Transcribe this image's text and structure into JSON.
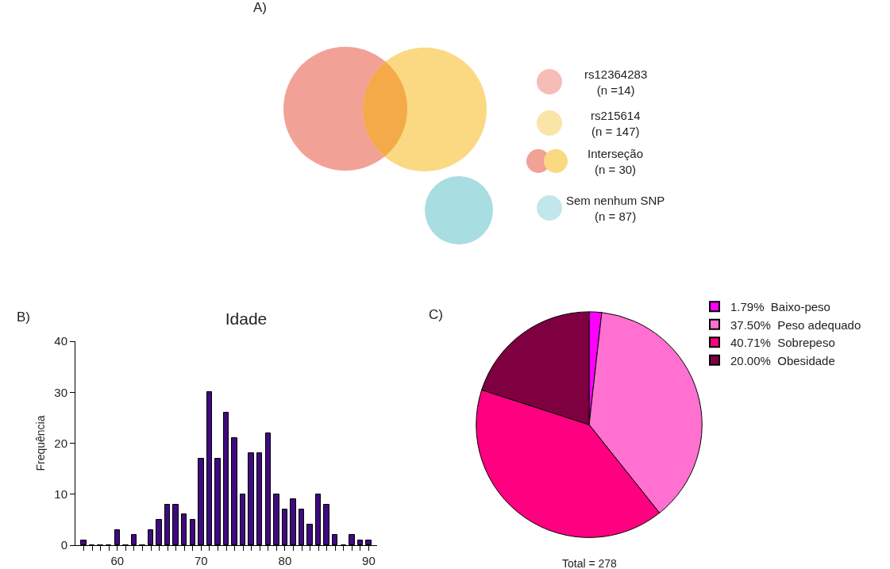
{
  "chart_data": [
    {
      "type": "other",
      "annotations": [
        "A)"
      ],
      "categories": [
        "rs12364283",
        "rs215614",
        "Interseção",
        "Sem nenhum SNP"
      ],
      "values": [
        14,
        147,
        30,
        87
      ],
      "value_labels": [
        "(n =14)",
        "(n = 147)",
        "(n = 30)",
        "(n = 87)"
      ],
      "colors": [
        "#f2a197",
        "#fad982",
        "#f5aa4a",
        "#a8dde2"
      ]
    },
    {
      "type": "histogram",
      "title": "Idade",
      "ylabel": "Frequência",
      "annotations": [
        "B)"
      ],
      "color": "#3f0a7f",
      "bins": [
        55.5,
        56.5,
        57.5,
        58.5,
        59.5,
        60.5,
        61.5,
        62.5,
        63.5,
        64.5,
        65.5,
        66.5,
        67.5,
        68.5,
        69.5,
        70.5,
        71.5,
        72.5,
        73.5,
        74.5,
        75.5,
        76.5,
        77.5,
        78.5,
        79.5,
        80.5,
        81.5,
        82.5,
        83.5,
        84.5,
        85.5,
        86.5,
        87.5,
        88.5,
        89.5,
        90.5
      ],
      "values": [
        1,
        0,
        0,
        0,
        3,
        0,
        2,
        0,
        3,
        5,
        8,
        8,
        6,
        5,
        17,
        30,
        17,
        26,
        21,
        10,
        18,
        18,
        22,
        10,
        7,
        9,
        7,
        4,
        10,
        8,
        2,
        0,
        2,
        1,
        1
      ],
      "xlim": [
        55,
        91
      ],
      "xticks": [
        {
          "value": 56,
          "label": null
        },
        {
          "value": 57,
          "label": null
        },
        {
          "value": 58,
          "label": null
        },
        {
          "value": 59,
          "label": null
        },
        60,
        {
          "value": 61,
          "label": null
        },
        {
          "value": 62,
          "label": null
        },
        {
          "value": 63,
          "label": null
        },
        {
          "value": 64,
          "label": null
        },
        {
          "value": 65,
          "label": null
        },
        {
          "value": 66,
          "label": null
        },
        {
          "value": 67,
          "label": null
        },
        {
          "value": 68,
          "label": null
        },
        {
          "value": 69,
          "label": null
        },
        70,
        {
          "value": 71,
          "label": null
        },
        {
          "value": 72,
          "label": null
        },
        {
          "value": 73,
          "label": null
        },
        {
          "value": 74,
          "label": null
        },
        {
          "value": 75,
          "label": null
        },
        {
          "value": 76,
          "label": null
        },
        {
          "value": 77,
          "label": null
        },
        {
          "value": 78,
          "label": null
        },
        {
          "value": 79,
          "label": null
        },
        80,
        {
          "value": 81,
          "label": null
        },
        {
          "value": 82,
          "label": null
        },
        {
          "value": 83,
          "label": null
        },
        {
          "value": 84,
          "label": null
        },
        {
          "value": 85,
          "label": null
        },
        {
          "value": 86,
          "label": null
        },
        {
          "value": 87,
          "label": null
        },
        {
          "value": 88,
          "label": null
        },
        {
          "value": 89,
          "label": null
        },
        90
      ],
      "ylim": [
        0,
        40
      ],
      "yticks": [
        0,
        10,
        20,
        30,
        40
      ],
      "grid": false
    },
    {
      "type": "pie",
      "annotations": [
        "C)",
        "Total = 278"
      ],
      "categories": [
        "Baixo-peso",
        "Peso adequado",
        "Sobrepeso",
        "Obesidade"
      ],
      "values": [
        1.79,
        37.5,
        40.71,
        20.0
      ],
      "value_labels": [
        "1.79%",
        "37.50%",
        "40.71%",
        "20.00%"
      ],
      "colors": [
        "#ff00ff",
        "#ff70d0",
        "#ff0080",
        "#7f0040"
      ],
      "legend": "top right"
    }
  ]
}
